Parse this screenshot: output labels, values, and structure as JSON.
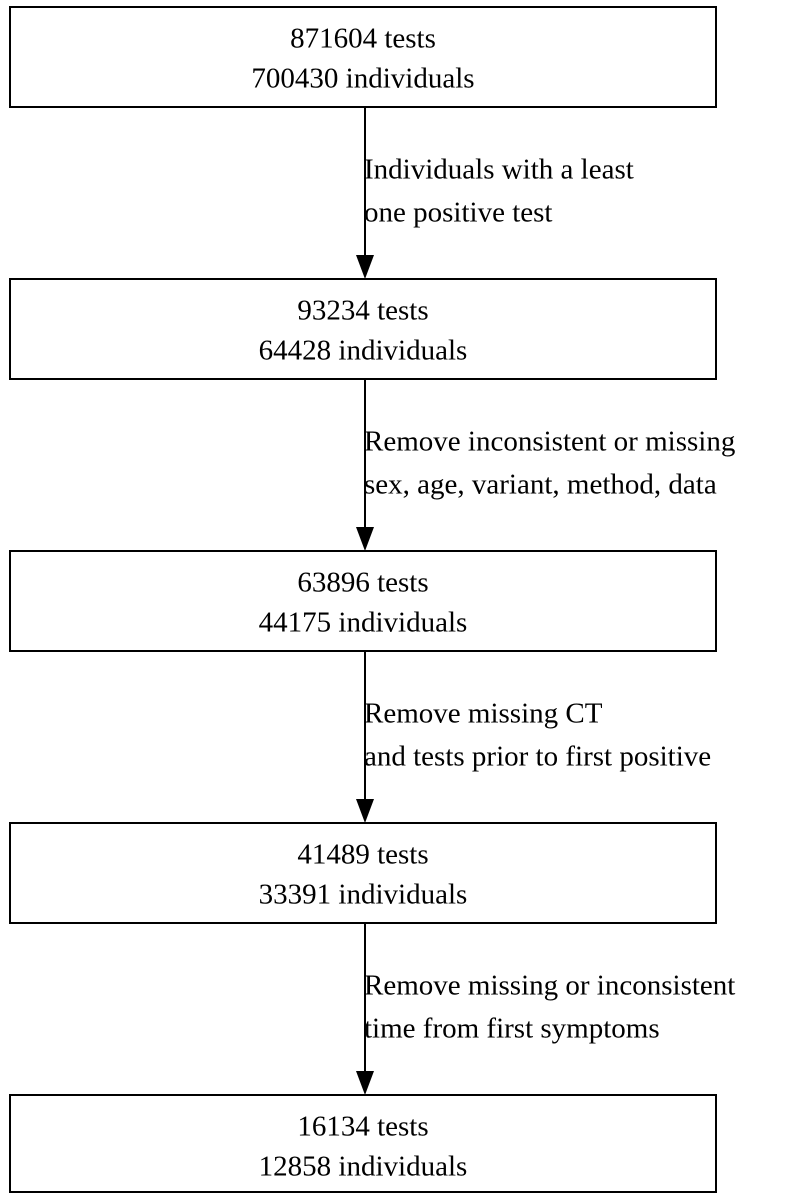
{
  "nodes": [
    {
      "lines": [
        "871604 tests",
        "700430 individuals"
      ]
    },
    {
      "lines": [
        "93234 tests",
        "64428 individuals"
      ]
    },
    {
      "lines": [
        "63896 tests",
        "44175 individuals"
      ]
    },
    {
      "lines": [
        "41489 tests",
        "33391 individuals"
      ]
    },
    {
      "lines": [
        "16134 tests",
        "12858 individuals"
      ]
    }
  ],
  "edges": [
    {
      "lines": [
        "Individuals with a least",
        "one positive test"
      ]
    },
    {
      "lines": [
        "Remove inconsistent or missing",
        "sex, age, variant, method, data"
      ]
    },
    {
      "lines": [
        "Remove missing CT",
        "and tests prior to first positive"
      ]
    },
    {
      "lines": [
        "Remove missing or inconsistent",
        "time from first symptoms"
      ]
    }
  ]
}
